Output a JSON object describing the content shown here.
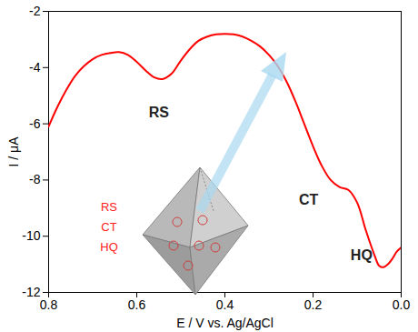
{
  "chart_data": {
    "type": "line",
    "x_label": "E / V vs. Ag/AgCl",
    "y_label": "I / μA",
    "x": [
      0.8,
      0.78,
      0.76,
      0.74,
      0.72,
      0.7,
      0.68,
      0.66,
      0.64,
      0.62,
      0.6,
      0.58,
      0.56,
      0.54,
      0.52,
      0.5,
      0.48,
      0.46,
      0.44,
      0.42,
      0.4,
      0.38,
      0.36,
      0.34,
      0.32,
      0.3,
      0.28,
      0.26,
      0.24,
      0.22,
      0.2,
      0.18,
      0.16,
      0.14,
      0.12,
      0.1,
      0.08,
      0.06,
      0.05,
      0.04,
      0.03,
      0.02,
      0.01,
      0.0
    ],
    "values": [
      -6.1,
      -5.4,
      -4.8,
      -4.3,
      -3.95,
      -3.7,
      -3.55,
      -3.48,
      -3.45,
      -3.55,
      -3.8,
      -4.1,
      -4.35,
      -4.4,
      -4.2,
      -3.75,
      -3.35,
      -3.05,
      -2.9,
      -2.82,
      -2.8,
      -2.82,
      -2.9,
      -3.05,
      -3.25,
      -3.55,
      -3.95,
      -4.5,
      -5.2,
      -6.0,
      -6.8,
      -7.5,
      -8.0,
      -8.25,
      -8.35,
      -8.8,
      -9.8,
      -10.7,
      -11.05,
      -11.1,
      -11.0,
      -10.8,
      -10.55,
      -10.4
    ],
    "color": "#ff0000",
    "xlim": [
      0.8,
      0.0
    ],
    "xticks": [
      0.8,
      0.6,
      0.4,
      0.2,
      {
        "value": 0,
        "label": "0.0"
      }
    ],
    "ylim": [
      -12,
      -2
    ],
    "yticks": [
      -12,
      -10,
      -8,
      -6,
      -4,
      -2
    ],
    "grid": false,
    "annotations": [
      {
        "text": "RS",
        "x": 0.55,
        "y": -5.6
      },
      {
        "text": "CT",
        "x": 0.21,
        "y": -8.7
      },
      {
        "text": "HQ",
        "x": 0.09,
        "y": -10.7
      }
    ],
    "inset": {
      "labels": [
        "RS",
        "CT",
        "HQ"
      ],
      "color": "#ff2020"
    }
  }
}
